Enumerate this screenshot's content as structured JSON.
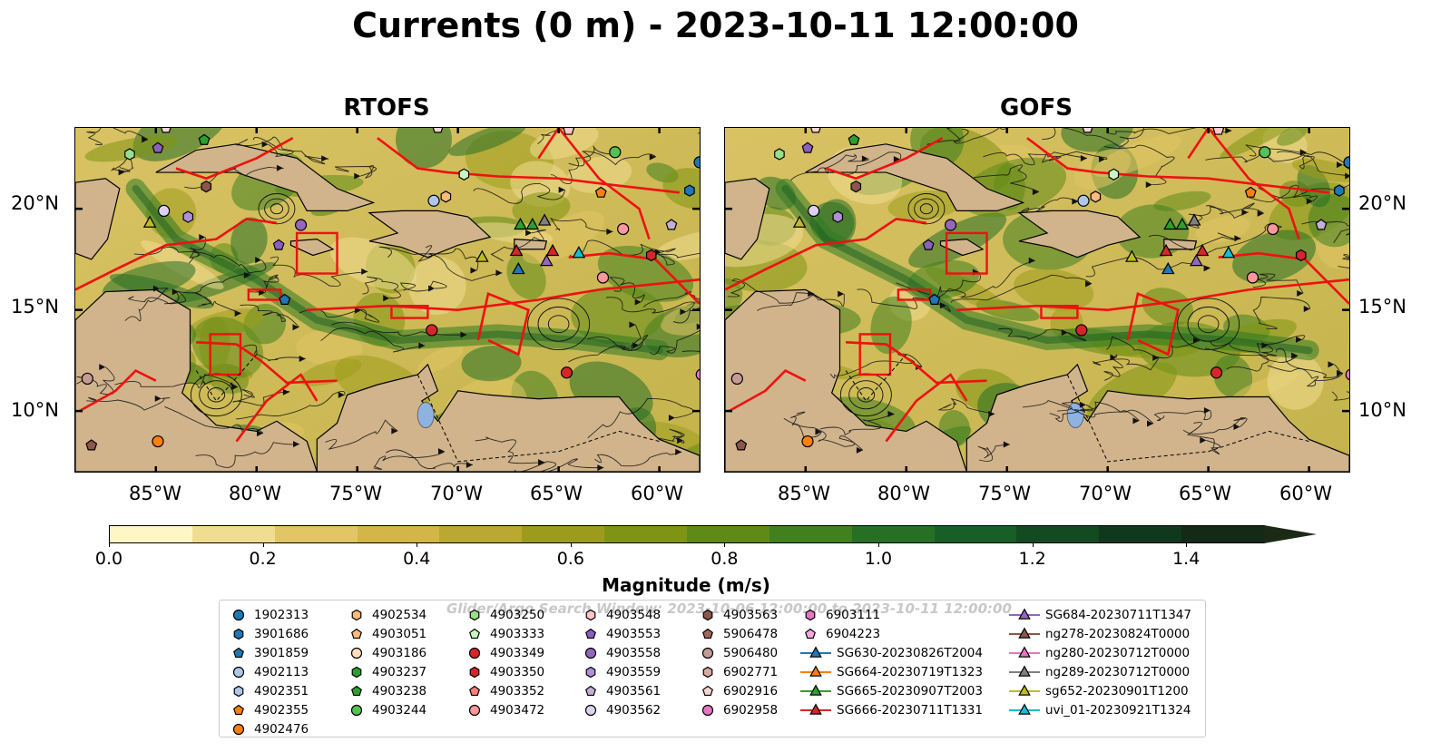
{
  "title": "Currents (0 m) - 2023-10-11 12:00:00",
  "panels": [
    {
      "name": "RTOFS"
    },
    {
      "name": "GOFS"
    }
  ],
  "lat_labels": [
    "20°N",
    "15°N",
    "10°N"
  ],
  "lon_labels": [
    "85°W",
    "80°W",
    "75°W",
    "70°W",
    "65°W",
    "60°W"
  ],
  "colorbar": {
    "label": "Magnitude (m/s)",
    "ticks": [
      "0.0",
      "0.2",
      "0.4",
      "0.6",
      "0.8",
      "1.0",
      "1.2",
      "1.4"
    ],
    "colors": [
      "#fef7c5",
      "#f1dd92",
      "#e2c565",
      "#d3b646",
      "#bba831",
      "#9c9c1c",
      "#7f9413",
      "#5f8a18",
      "#40801f",
      "#276f25",
      "#175e27",
      "#124a22",
      "#10381c",
      "#132a16"
    ]
  },
  "legend": {
    "title": "Glider/Argo Search Window: 2023-10-06 12:00:00 to 2023-10-11 12:00:00",
    "columns": [
      [
        {
          "label": "1902313",
          "marker": "circle",
          "color": "#1f77b4"
        },
        {
          "label": "3901686",
          "marker": "hexagon",
          "color": "#1f77b4"
        },
        {
          "label": "3901859",
          "marker": "pentagon",
          "color": "#1f77b4"
        },
        {
          "label": "4902113",
          "marker": "circle",
          "color": "#aec7e8"
        },
        {
          "label": "4902351",
          "marker": "hexagon",
          "color": "#aec7e8"
        },
        {
          "label": "4902355",
          "marker": "pentagon",
          "color": "#ff7f0e"
        },
        {
          "label": "4902476",
          "marker": "circle",
          "color": "#ff7f0e"
        }
      ],
      [
        {
          "label": "4902534",
          "marker": "hexagon",
          "color": "#ffbb78"
        },
        {
          "label": "4903051",
          "marker": "pentagon",
          "color": "#ffbb78"
        },
        {
          "label": "4903186",
          "marker": "circle",
          "color": "#ffdfc0"
        },
        {
          "label": "4903237",
          "marker": "hexagon",
          "color": "#2ca02c"
        },
        {
          "label": "4903238",
          "marker": "pentagon",
          "color": "#2ca02c"
        },
        {
          "label": "4903244",
          "marker": "circle",
          "color": "#55c155"
        }
      ],
      [
        {
          "label": "4903250",
          "marker": "hexagon",
          "color": "#98df8a"
        },
        {
          "label": "4903333",
          "marker": "pentagon",
          "color": "#c9f5c0"
        },
        {
          "label": "4903349",
          "marker": "circle",
          "color": "#d62728"
        },
        {
          "label": "4903350",
          "marker": "hexagon",
          "color": "#d62728"
        },
        {
          "label": "4903352",
          "marker": "pentagon",
          "color": "#ff7f7f"
        },
        {
          "label": "4903472",
          "marker": "circle",
          "color": "#ff9896"
        }
      ],
      [
        {
          "label": "4903548",
          "marker": "hexagon",
          "color": "#ffc6c4"
        },
        {
          "label": "4903553",
          "marker": "pentagon",
          "color": "#8c5fc0"
        },
        {
          "label": "4903558",
          "marker": "circle",
          "color": "#9467bd"
        },
        {
          "label": "4903559",
          "marker": "hexagon",
          "color": "#b08fd8"
        },
        {
          "label": "4903561",
          "marker": "pentagon",
          "color": "#c5b0d5"
        },
        {
          "label": "4903562",
          "marker": "circle",
          "color": "#e0d0f0"
        }
      ],
      [
        {
          "label": "4903563",
          "marker": "hexagon",
          "color": "#8c564b"
        },
        {
          "label": "5906478",
          "marker": "pentagon",
          "color": "#a0675c"
        },
        {
          "label": "5906480",
          "marker": "circle",
          "color": "#c49c94"
        },
        {
          "label": "6902771",
          "marker": "hexagon",
          "color": "#d8aaa2"
        },
        {
          "label": "6902916",
          "marker": "pentagon",
          "color": "#f5d5d0"
        },
        {
          "label": "6902958",
          "marker": "circle",
          "color": "#e377c2"
        }
      ],
      [
        {
          "label": "6903111",
          "marker": "hexagon",
          "color": "#e377c2"
        },
        {
          "label": "6904223",
          "marker": "pentagon",
          "color": "#f7a8dc"
        },
        {
          "label": "SG630-20230826T2004",
          "marker": "triangle-line",
          "color": "#1f77b4"
        },
        {
          "label": "SG664-20230719T1323",
          "marker": "triangle-line",
          "color": "#ff7f0e"
        },
        {
          "label": "SG665-20230907T2003",
          "marker": "triangle-line",
          "color": "#2ca02c"
        },
        {
          "label": "SG666-20230711T1331",
          "marker": "triangle-line",
          "color": "#d62728"
        }
      ],
      [
        {
          "label": "SG684-20230711T1347",
          "marker": "triangle-line",
          "color": "#9467bd"
        },
        {
          "label": "ng278-20230824T0000",
          "marker": "triangle-line",
          "color": "#8c564b"
        },
        {
          "label": "ng280-20230712T0000",
          "marker": "triangle-line",
          "color": "#e377c2"
        },
        {
          "label": "ng289-20230712T0000",
          "marker": "triangle-line",
          "color": "#7f7f7f"
        },
        {
          "label": "sg652-20230901T1200",
          "marker": "triangle-line",
          "color": "#bcbd22"
        },
        {
          "label": "uvi_01-20230921T1324",
          "marker": "triangle-line",
          "color": "#17becf"
        }
      ]
    ]
  },
  "map_markers": [
    {
      "lon": -58.0,
      "lat": 22.3,
      "marker": "circle",
      "color": "#1f77b4"
    },
    {
      "lon": -58.5,
      "lat": 20.9,
      "marker": "hexagon",
      "color": "#1f77b4"
    },
    {
      "lon": -78.6,
      "lat": 15.5,
      "marker": "pentagon",
      "color": "#1f77b4"
    },
    {
      "lon": -71.2,
      "lat": 20.4,
      "marker": "circle",
      "color": "#aec7e8"
    },
    {
      "lon": -69.7,
      "lat": 21.7,
      "marker": "hexagon",
      "color": "#c9f5c0"
    },
    {
      "lon": -62.9,
      "lat": 20.8,
      "marker": "pentagon",
      "color": "#ff7f0e"
    },
    {
      "lon": -84.9,
      "lat": 8.5,
      "marker": "circle",
      "color": "#ff7f0e"
    },
    {
      "lon": -70.6,
      "lat": 20.6,
      "marker": "hexagon",
      "color": "#ffbb78"
    },
    {
      "lon": -82.6,
      "lat": 23.4,
      "marker": "pentagon",
      "color": "#2ca02c"
    },
    {
      "lon": -62.2,
      "lat": 22.8,
      "marker": "circle",
      "color": "#55c155"
    },
    {
      "lon": -86.3,
      "lat": 22.7,
      "marker": "hexagon",
      "color": "#98df8a"
    },
    {
      "lon": -71.3,
      "lat": 14.0,
      "marker": "circle",
      "color": "#d62728"
    },
    {
      "lon": -64.6,
      "lat": 11.9,
      "marker": "circle",
      "color": "#d62728"
    },
    {
      "lon": -60.4,
      "lat": 17.7,
      "marker": "hexagon",
      "color": "#d62728"
    },
    {
      "lon": -61.8,
      "lat": 19.0,
      "marker": "circle",
      "color": "#ff9896"
    },
    {
      "lon": -62.8,
      "lat": 16.6,
      "marker": "circle",
      "color": "#ff9896"
    },
    {
      "lon": -64.5,
      "lat": 23.9,
      "marker": "pentagon",
      "color": "#ffc6c4"
    },
    {
      "lon": -84.9,
      "lat": 23.0,
      "marker": "pentagon",
      "color": "#8c5fc0"
    },
    {
      "lon": -78.9,
      "lat": 18.2,
      "marker": "pentagon",
      "color": "#8c5fc0"
    },
    {
      "lon": -77.8,
      "lat": 19.2,
      "marker": "circle",
      "color": "#9467bd"
    },
    {
      "lon": -83.4,
      "lat": 19.6,
      "marker": "hexagon",
      "color": "#b08fd8"
    },
    {
      "lon": -59.4,
      "lat": 19.2,
      "marker": "pentagon",
      "color": "#c5b0d5"
    },
    {
      "lon": -84.6,
      "lat": 19.9,
      "marker": "circle",
      "color": "#e0d0f0"
    },
    {
      "lon": -82.5,
      "lat": 21.1,
      "marker": "hexagon",
      "color": "#8c564b"
    },
    {
      "lon": -88.2,
      "lat": 8.3,
      "marker": "pentagon",
      "color": "#8c564b"
    },
    {
      "lon": -88.4,
      "lat": 11.6,
      "marker": "circle",
      "color": "#c49c94"
    },
    {
      "lon": -84.5,
      "lat": 24.0,
      "marker": "pentagon",
      "color": "#f5d5d0"
    },
    {
      "lon": -71.0,
      "lat": 24.0,
      "marker": "pentagon",
      "color": "#f5d5d0"
    },
    {
      "lon": -57.9,
      "lat": 11.8,
      "marker": "circle",
      "color": "#e377c2"
    },
    {
      "lon": -85.3,
      "lat": 19.3,
      "marker": "triangle",
      "color": "#bcbd22"
    },
    {
      "lon": -67.0,
      "lat": 17.0,
      "marker": "triangle",
      "color": "#1f77b4"
    },
    {
      "lon": -66.9,
      "lat": 19.2,
      "marker": "triangle",
      "color": "#2ca02c"
    },
    {
      "lon": -66.3,
      "lat": 19.2,
      "marker": "triangle",
      "color": "#2ca02c"
    },
    {
      "lon": -67.1,
      "lat": 17.9,
      "marker": "triangle",
      "color": "#d62728"
    },
    {
      "lon": -65.3,
      "lat": 17.9,
      "marker": "triangle",
      "color": "#d62728"
    },
    {
      "lon": -65.7,
      "lat": 19.4,
      "marker": "triangle",
      "color": "#7f7f7f"
    },
    {
      "lon": -65.6,
      "lat": 17.4,
      "marker": "triangle",
      "color": "#9467bd"
    },
    {
      "lon": -64.0,
      "lat": 17.8,
      "marker": "triangle",
      "color": "#17becf"
    },
    {
      "lon": -68.8,
      "lat": 17.6,
      "marker": "triangle",
      "color": "#bcbd22"
    }
  ]
}
